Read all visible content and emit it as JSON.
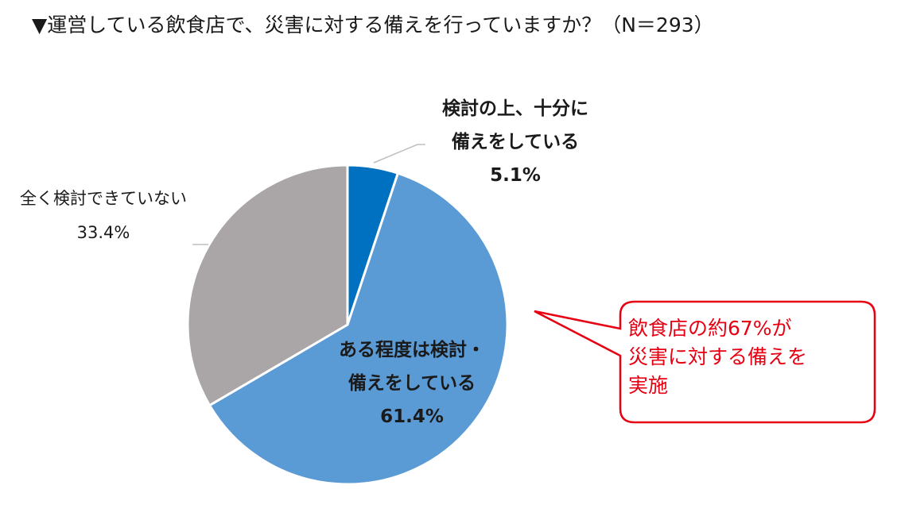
{
  "chart_data": {
    "type": "pie",
    "title": "▼運営している飲食店で、災害に対する備えを行っていますか？（N＝293）",
    "slices": [
      {
        "label_lines": [
          "検討の上、十分に",
          "備えをしている"
        ],
        "value": 5.1,
        "value_label": "5.1%",
        "color": "#0070c0"
      },
      {
        "label_lines": [
          "ある程度は検討・",
          "備えをしている"
        ],
        "value": 61.4,
        "value_label": "61.4%",
        "color": "#5b9bd5"
      },
      {
        "label_lines": [
          "全く検討できていない"
        ],
        "value": 33.4,
        "value_label": "33.4%",
        "color": "#aaa6a7"
      }
    ],
    "start": "12 o'clock",
    "direction": "clockwise"
  },
  "callout": {
    "lines": [
      "飲食店の約67%が",
      "災害に対する備えを",
      "実施"
    ],
    "text_color": "#e60012",
    "border_color": "#e60012"
  },
  "leader_line_color": "#bfbfbf"
}
